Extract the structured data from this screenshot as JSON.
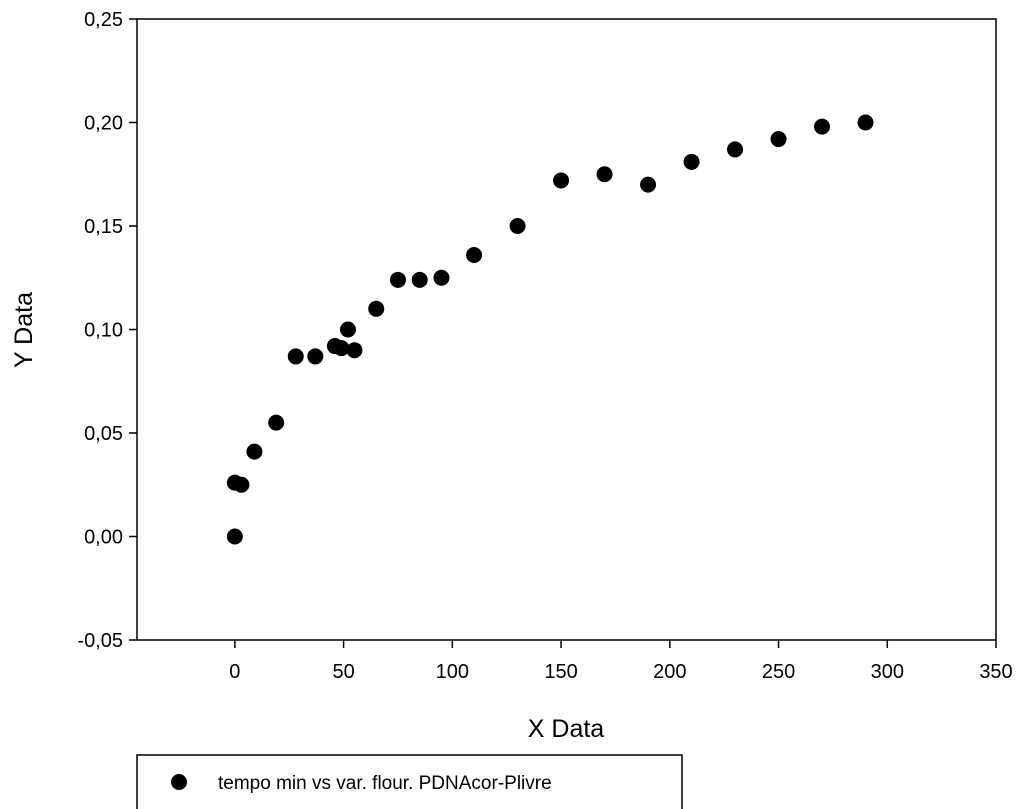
{
  "chart_data": {
    "type": "scatter",
    "xlabel": "X Data",
    "ylabel": "Y Data",
    "xlim": [
      -45,
      350
    ],
    "ylim": [
      -0.05,
      0.25
    ],
    "x_ticks": [
      0,
      50,
      100,
      150,
      200,
      250,
      300,
      350
    ],
    "y_ticks": [
      -0.05,
      0.0,
      0.05,
      0.1,
      0.15,
      0.2,
      0.25
    ],
    "x_tick_labels": [
      "0",
      "50",
      "100",
      "150",
      "200",
      "250",
      "300",
      "350"
    ],
    "y_tick_labels": [
      "-0,05",
      "0,00",
      "0,05",
      "0,10",
      "0,15",
      "0,20",
      "0,25"
    ],
    "grid": false,
    "legend_position": "bottom-left",
    "marker_color": "#000000",
    "series": [
      {
        "name": "tempo min vs var. flour. PDNAcor-Plivre",
        "points": [
          [
            0,
            0.0
          ],
          [
            0,
            0.026
          ],
          [
            3,
            0.025
          ],
          [
            9,
            0.041
          ],
          [
            19,
            0.055
          ],
          [
            28,
            0.087
          ],
          [
            37,
            0.087
          ],
          [
            46,
            0.092
          ],
          [
            49,
            0.091
          ],
          [
            52,
            0.1
          ],
          [
            55,
            0.09
          ],
          [
            65,
            0.11
          ],
          [
            75,
            0.124
          ],
          [
            85,
            0.124
          ],
          [
            95,
            0.125
          ],
          [
            110,
            0.136
          ],
          [
            130,
            0.15
          ],
          [
            150,
            0.172
          ],
          [
            170,
            0.175
          ],
          [
            190,
            0.17
          ],
          [
            210,
            0.181
          ],
          [
            230,
            0.187
          ],
          [
            250,
            0.192
          ],
          [
            270,
            0.198
          ],
          [
            290,
            0.2
          ]
        ]
      }
    ]
  }
}
